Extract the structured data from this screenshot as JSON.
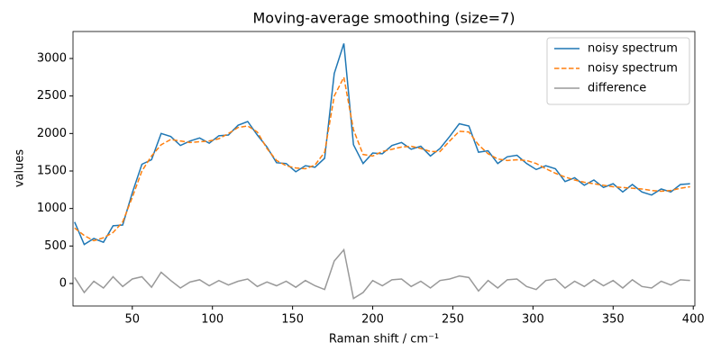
{
  "chart_data": {
    "type": "line",
    "title": "Moving-average smoothing (size=7)",
    "xlabel": "Raman shift / cm⁻¹",
    "ylabel": "values",
    "x": [
      14,
      20,
      26,
      32,
      38,
      44,
      50,
      56,
      62,
      68,
      74,
      80,
      86,
      92,
      98,
      104,
      110,
      116,
      122,
      128,
      134,
      140,
      146,
      152,
      158,
      164,
      170,
      176,
      182,
      188,
      194,
      200,
      206,
      212,
      218,
      224,
      230,
      236,
      242,
      248,
      254,
      260,
      266,
      272,
      278,
      284,
      290,
      296,
      302,
      308,
      314,
      320,
      326,
      332,
      338,
      344,
      350,
      356,
      362,
      368,
      374,
      380,
      386,
      392,
      398
    ],
    "series": [
      {
        "name": "noisy spectrum",
        "color": "#1f77b4",
        "linestyle": "solid",
        "values": [
          820,
          520,
          600,
          550,
          770,
          780,
          1210,
          1590,
          1650,
          2000,
          1960,
          1840,
          1900,
          1940,
          1870,
          1970,
          1980,
          2110,
          2160,
          1980,
          1820,
          1610,
          1600,
          1490,
          1570,
          1550,
          1670,
          2800,
          3200,
          1850,
          1600,
          1740,
          1730,
          1840,
          1880,
          1790,
          1830,
          1700,
          1800,
          1960,
          2130,
          2100,
          1750,
          1770,
          1600,
          1690,
          1710,
          1600,
          1520,
          1570,
          1530,
          1360,
          1410,
          1310,
          1380,
          1280,
          1330,
          1220,
          1320,
          1220,
          1180,
          1260,
          1220,
          1320,
          1330
        ]
      },
      {
        "name": "noisy spectrum",
        "color": "#ff7f0e",
        "linestyle": "dashed",
        "values": [
          740,
          640,
          570,
          610,
          680,
          820,
          1150,
          1500,
          1700,
          1850,
          1920,
          1900,
          1880,
          1890,
          1900,
          1930,
          2000,
          2080,
          2100,
          2020,
          1800,
          1640,
          1570,
          1540,
          1530,
          1580,
          1750,
          2500,
          2750,
          2050,
          1720,
          1700,
          1760,
          1790,
          1820,
          1830,
          1800,
          1760,
          1760,
          1900,
          2030,
          2020,
          1850,
          1730,
          1660,
          1640,
          1650,
          1640,
          1600,
          1530,
          1470,
          1420,
          1380,
          1350,
          1330,
          1310,
          1290,
          1280,
          1270,
          1260,
          1240,
          1230,
          1240,
          1270,
          1290
        ]
      },
      {
        "name": "difference",
        "color": "#999999",
        "linestyle": "solid",
        "values": [
          80,
          -120,
          30,
          -60,
          90,
          -40,
          60,
          90,
          -50,
          150,
          40,
          -60,
          20,
          50,
          -30,
          40,
          -20,
          30,
          60,
          -40,
          20,
          -30,
          30,
          -50,
          40,
          -30,
          -80,
          300,
          450,
          -200,
          -120,
          40,
          -30,
          50,
          60,
          -40,
          30,
          -60,
          40,
          60,
          100,
          80,
          -100,
          40,
          -60,
          50,
          60,
          -40,
          -80,
          40,
          60,
          -60,
          30,
          -40,
          50,
          -30,
          40,
          -60,
          50,
          -40,
          -60,
          30,
          -20,
          50,
          40
        ]
      }
    ],
    "xlim": [
      13,
      401
    ],
    "ylim": [
      -300,
      3360
    ],
    "xticks": [
      50,
      100,
      150,
      200,
      250,
      300,
      350,
      400
    ],
    "yticks": [
      0,
      500,
      1000,
      1500,
      2000,
      2500,
      3000
    ],
    "legend": "upper right"
  }
}
